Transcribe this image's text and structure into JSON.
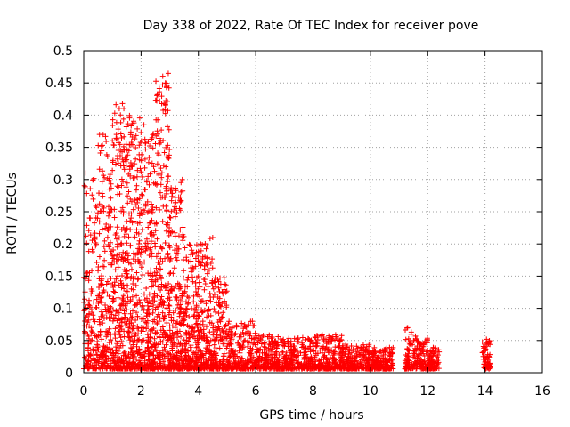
{
  "chart_data": {
    "type": "scatter",
    "title": "Day 338 of 2022, Rate Of TEC Index for receiver pove",
    "xlabel": "GPS time / hours",
    "ylabel": "ROTI / TECUs",
    "xlim": [
      0,
      16
    ],
    "ylim": [
      0,
      0.5
    ],
    "xticks": [
      "0",
      "2",
      "4",
      "6",
      "8",
      "10",
      "12",
      "14",
      "16"
    ],
    "xtick_values": [
      0,
      2,
      4,
      6,
      8,
      10,
      12,
      14,
      16
    ],
    "yticks": [
      "0",
      "0.05",
      "0.1",
      "0.15",
      "0.2",
      "0.25",
      "0.3",
      "0.35",
      "0.4",
      "0.45",
      "0.5"
    ],
    "ytick_values": [
      0,
      0.05,
      0.1,
      0.15,
      0.2,
      0.25,
      0.3,
      0.35,
      0.4,
      0.45,
      0.5
    ],
    "grid": true,
    "marker": "+",
    "color": "#ff0000",
    "series": [
      {
        "name": "ROTI",
        "envelope": [
          {
            "x_from": 0.0,
            "x_to": 0.5,
            "y_peak": 0.31,
            "count": 160
          },
          {
            "x_from": 0.5,
            "x_to": 1.0,
            "y_peak": 0.37,
            "count": 200
          },
          {
            "x_from": 1.0,
            "x_to": 1.5,
            "y_peak": 0.42,
            "count": 260
          },
          {
            "x_from": 1.5,
            "x_to": 2.0,
            "y_peak": 0.4,
            "count": 260
          },
          {
            "x_from": 2.0,
            "x_to": 2.5,
            "y_peak": 0.38,
            "count": 260
          },
          {
            "x_from": 2.5,
            "x_to": 3.0,
            "y_peak": 0.465,
            "count": 260
          },
          {
            "x_from": 3.0,
            "x_to": 3.5,
            "y_peak": 0.3,
            "count": 230
          },
          {
            "x_from": 3.5,
            "x_to": 4.0,
            "y_peak": 0.2,
            "count": 200
          },
          {
            "x_from": 4.0,
            "x_to": 4.5,
            "y_peak": 0.21,
            "count": 180
          },
          {
            "x_from": 4.5,
            "x_to": 5.0,
            "y_peak": 0.15,
            "count": 160
          },
          {
            "x_from": 5.0,
            "x_to": 6.0,
            "y_peak": 0.08,
            "count": 220
          },
          {
            "x_from": 6.0,
            "x_to": 7.0,
            "y_peak": 0.06,
            "count": 220
          },
          {
            "x_from": 7.0,
            "x_to": 8.0,
            "y_peak": 0.055,
            "count": 220
          },
          {
            "x_from": 8.0,
            "x_to": 9.0,
            "y_peak": 0.06,
            "count": 220
          },
          {
            "x_from": 9.0,
            "x_to": 10.0,
            "y_peak": 0.045,
            "count": 220
          },
          {
            "x_from": 10.0,
            "x_to": 10.8,
            "y_peak": 0.04,
            "count": 180
          },
          {
            "x_from": 11.2,
            "x_to": 11.6,
            "y_peak": 0.07,
            "count": 90
          },
          {
            "x_from": 11.6,
            "x_to": 12.0,
            "y_peak": 0.055,
            "count": 90
          },
          {
            "x_from": 12.0,
            "x_to": 12.4,
            "y_peak": 0.04,
            "count": 90
          },
          {
            "x_from": 13.9,
            "x_to": 14.2,
            "y_peak": 0.052,
            "count": 60
          }
        ],
        "notable_points": [
          {
            "x": 2.95,
            "y": 0.465
          },
          {
            "x": 2.9,
            "y": 0.445
          },
          {
            "x": 1.35,
            "y": 0.418
          },
          {
            "x": 1.4,
            "y": 0.41
          },
          {
            "x": 2.1,
            "y": 0.385
          },
          {
            "x": 0.05,
            "y": 0.31
          },
          {
            "x": 0.55,
            "y": 0.37
          },
          {
            "x": 4.5,
            "y": 0.21
          },
          {
            "x": 11.3,
            "y": 0.07
          },
          {
            "x": 14.05,
            "y": 0.052
          }
        ]
      }
    ]
  }
}
